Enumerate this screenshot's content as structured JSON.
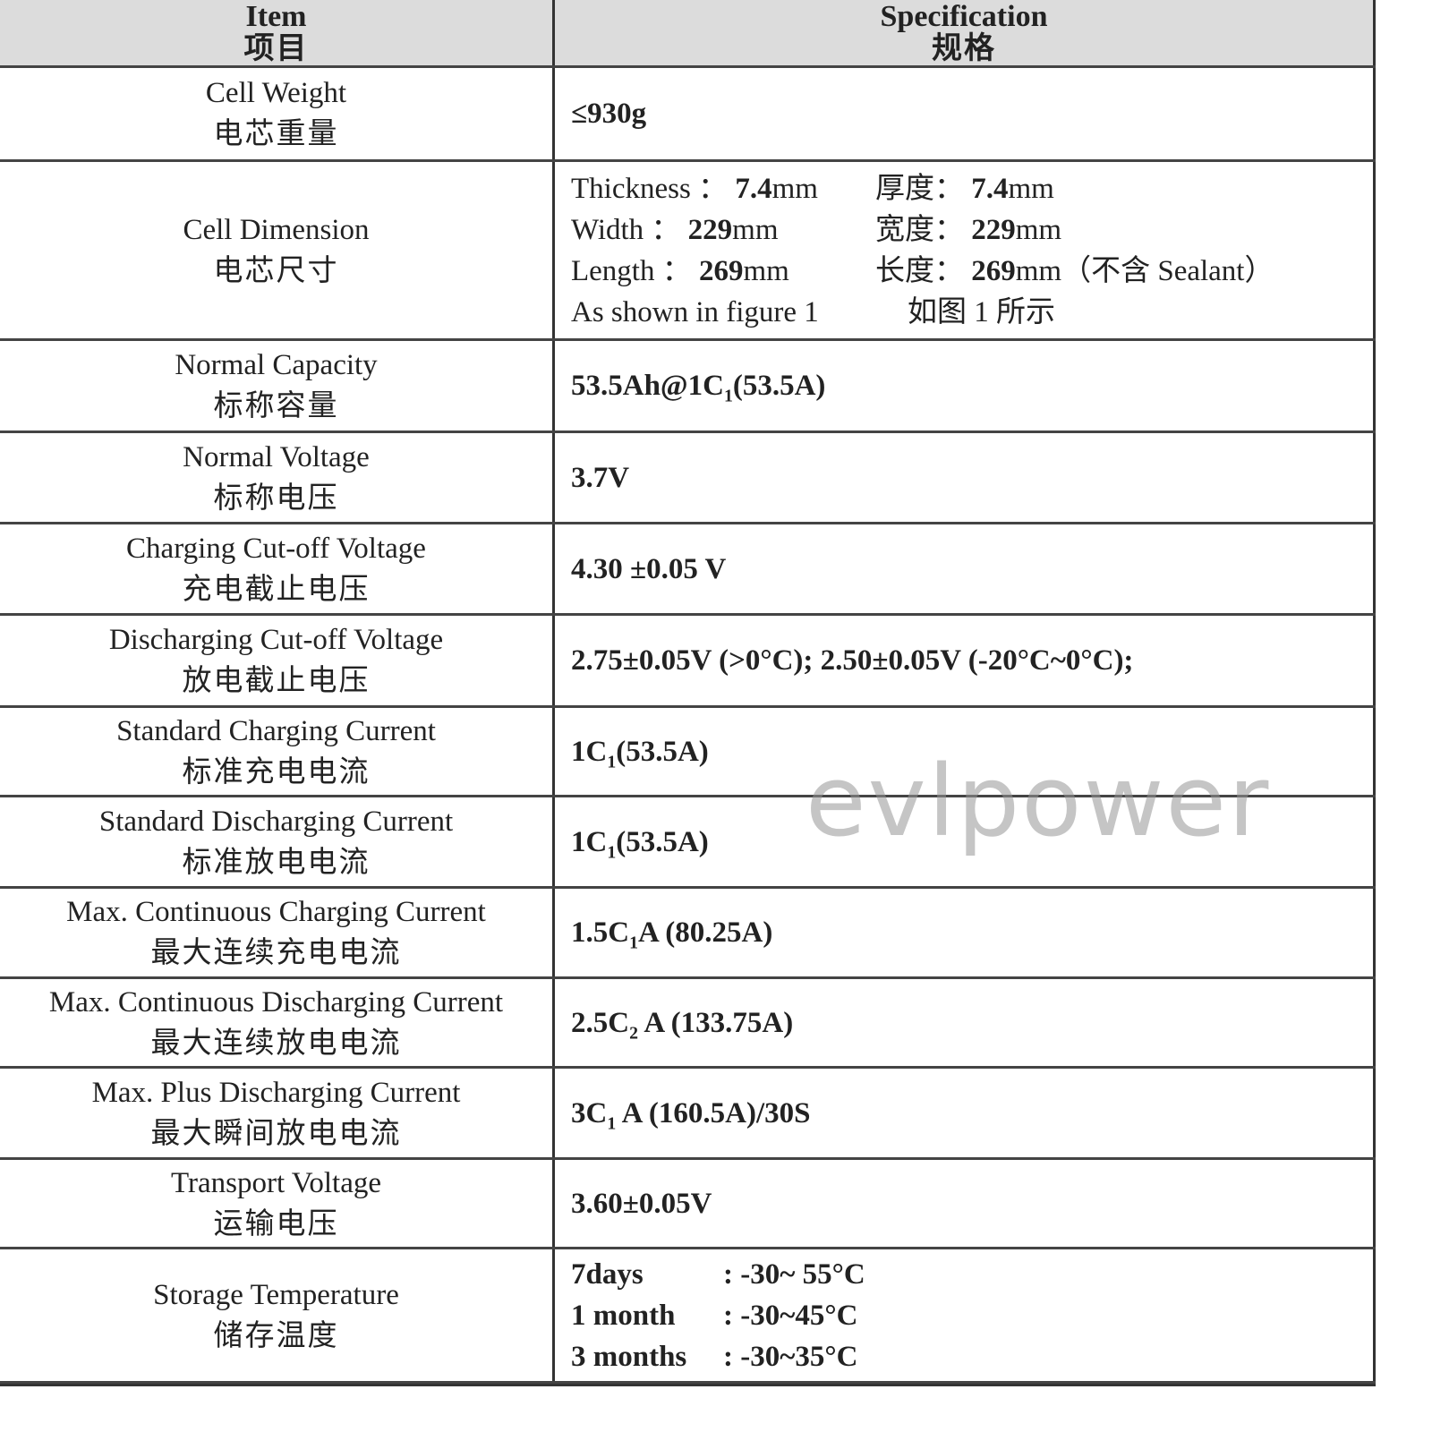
{
  "header": {
    "item_en": "Item",
    "item_zh": "项目",
    "spec_en": "Specification",
    "spec_zh": "规格"
  },
  "rows": [
    {
      "en": "Cell Weight",
      "zh": "电芯重量",
      "spec": [
        [
          {
            "t": "≤930g"
          }
        ]
      ]
    },
    {
      "en": "Cell Dimension",
      "zh": "电芯尺寸",
      "dim": [
        {
          "a": "Thickness ： ",
          "av": "7.4",
          "au": "mm",
          "b": "厚度： ",
          "bv": "7.4",
          "bu": "mm"
        },
        {
          "a": "Width ： ",
          "av": "229",
          "au": "mm",
          "b": "宽度： ",
          "bv": "229",
          "bu": "mm"
        },
        {
          "a": "Length ： ",
          "av": "269",
          "au": "mm",
          "b": "长度： ",
          "bv": "269",
          "bu": "mm（不含 Sealant）"
        },
        {
          "a": "As shown in figure 1",
          "av": "",
          "au": "",
          "b": "如图 1 所示",
          "bv": "",
          "bu": ""
        }
      ]
    },
    {
      "en": "Normal Capacity",
      "zh": "标称容量",
      "spec": [
        [
          {
            "t": "53.5Ah@1C"
          },
          {
            "s": "1"
          },
          {
            "t": "(53.5A)"
          }
        ]
      ]
    },
    {
      "en": "Normal Voltage",
      "zh": "标称电压",
      "spec": [
        [
          {
            "t": "3.7V"
          }
        ]
      ]
    },
    {
      "en": "Charging Cut-off Voltage",
      "zh": "充电截止电压",
      "spec": [
        [
          {
            "t": "4.30 ±0.05 V"
          }
        ]
      ]
    },
    {
      "en": "Discharging Cut-off Voltage",
      "zh": "放电截止电压",
      "spec": [
        [
          {
            "t": "2.75±0.05V (>0°C); 2.50±0.05V (-20°C~0°C);"
          }
        ]
      ]
    },
    {
      "en": "Standard Charging Current",
      "zh": "标准充电电流",
      "spec": [
        [
          {
            "t": "1C"
          },
          {
            "s": "1"
          },
          {
            "t": "(53.5A)"
          }
        ]
      ]
    },
    {
      "en": "Standard Discharging Current",
      "zh": "标准放电电流",
      "spec": [
        [
          {
            "t": "1C"
          },
          {
            "s": "1"
          },
          {
            "t": "(53.5A)"
          }
        ]
      ]
    },
    {
      "en": "Max. Continuous Charging Current",
      "zh": "最大连续充电电流",
      "spec": [
        [
          {
            "t": "1.5C"
          },
          {
            "s": "1"
          },
          {
            "t": "A (80.25A)"
          }
        ]
      ]
    },
    {
      "en": "Max. Continuous Discharging Current",
      "zh": "最大连续放电电流",
      "spec": [
        [
          {
            "t": "2.5C"
          },
          {
            "s": "2"
          },
          {
            "t": " A (133.75A)"
          }
        ]
      ]
    },
    {
      "en": "Max. Plus Discharging Current",
      "zh": "最大瞬间放电电流",
      "spec": [
        [
          {
            "t": "3C"
          },
          {
            "s": "1"
          },
          {
            "t": " A (160.5A)/30S"
          }
        ]
      ]
    },
    {
      "en": "Transport Voltage",
      "zh": "运输电压",
      "spec": [
        [
          {
            "t": "3.60±0.05V"
          }
        ]
      ]
    },
    {
      "en": "Storage Temperature",
      "zh": "储存温度",
      "stor": [
        {
          "k": "7days",
          "v": ": -30~ 55°C"
        },
        {
          "k": "1 month",
          "v": ": -30~45°C"
        },
        {
          "k": "3 months",
          "v": ": -30~35°C"
        }
      ]
    }
  ],
  "watermark": "evlpower"
}
